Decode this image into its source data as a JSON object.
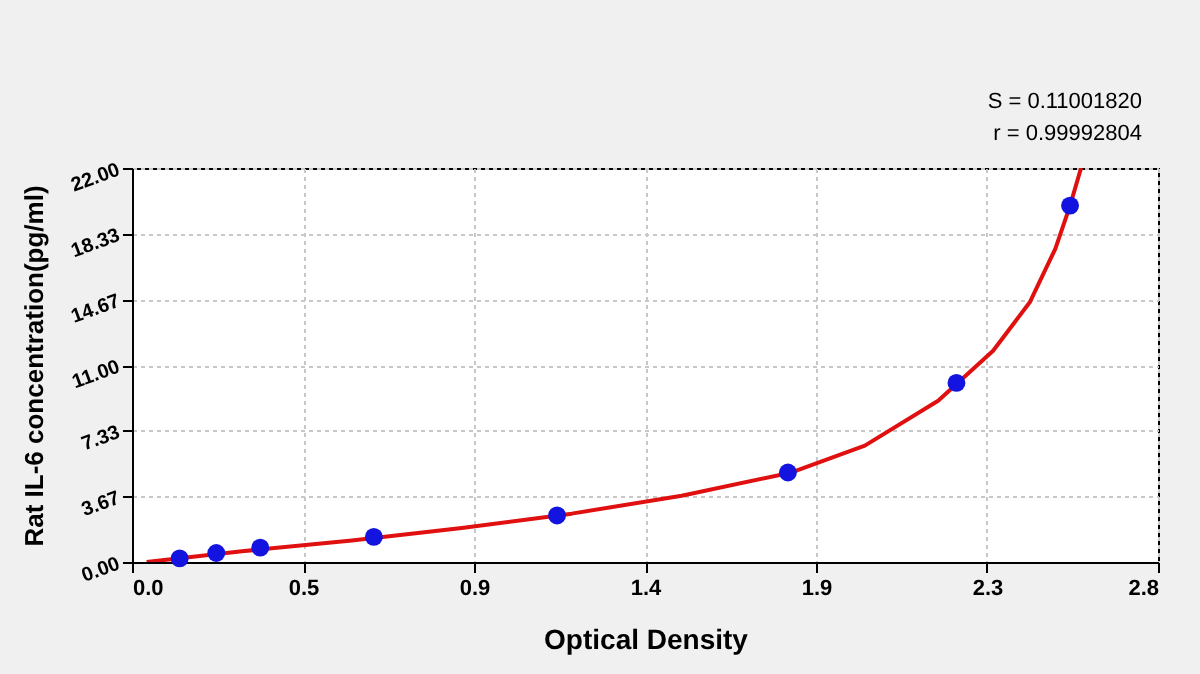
{
  "chart_data": {
    "type": "scatter",
    "xlabel": "Optical Density",
    "ylabel": "Rat  IL-6 concentration(pg/ml)",
    "annotations": [
      "S = 0.11001820",
      "r = 0.99992804"
    ],
    "xlim": [
      0,
      2.8
    ],
    "ylim": [
      0,
      22
    ],
    "xticks": [
      {
        "value": 0,
        "label": "0.0"
      },
      {
        "value": 0.4667,
        "label": "0.5"
      },
      {
        "value": 0.9333,
        "label": "0.9"
      },
      {
        "value": 1.4,
        "label": "1.4"
      },
      {
        "value": 1.8667,
        "label": "1.9"
      },
      {
        "value": 2.3333,
        "label": "2.3"
      },
      {
        "value": 2.8,
        "label": "2.8"
      }
    ],
    "yticks": [
      {
        "value": 0,
        "label": "0.00"
      },
      {
        "value": 3.6667,
        "label": "3.67"
      },
      {
        "value": 7.3333,
        "label": "7.33"
      },
      {
        "value": 11,
        "label": "11.00"
      },
      {
        "value": 14.6667,
        "label": "14.67"
      },
      {
        "value": 18.3333,
        "label": "18.33"
      },
      {
        "value": 22,
        "label": "22.00"
      }
    ],
    "grid": true,
    "marker": "circle",
    "series": [
      {
        "type": "line",
        "color": "#e01010",
        "x": [
          0.04,
          0.3,
          0.6,
          0.9,
          1.2,
          1.5,
          1.8,
          2.0,
          2.2,
          2.35,
          2.45,
          2.52,
          2.56,
          2.59
        ],
        "values": [
          0,
          0.6,
          1.2,
          1.9,
          2.7,
          3.7,
          5.0,
          6.5,
          9.0,
          11.8,
          14.5,
          17.5,
          19.9,
          22.0
        ],
        "marker": "none"
      },
      {
        "color": "#1414e0",
        "x": [
          0.13,
          0.23,
          0.35,
          0.66,
          1.16,
          1.79,
          2.25,
          2.56
        ],
        "values": [
          0.2,
          0.5,
          0.8,
          1.4,
          2.6,
          5.0,
          10.0,
          19.9
        ]
      }
    ]
  }
}
